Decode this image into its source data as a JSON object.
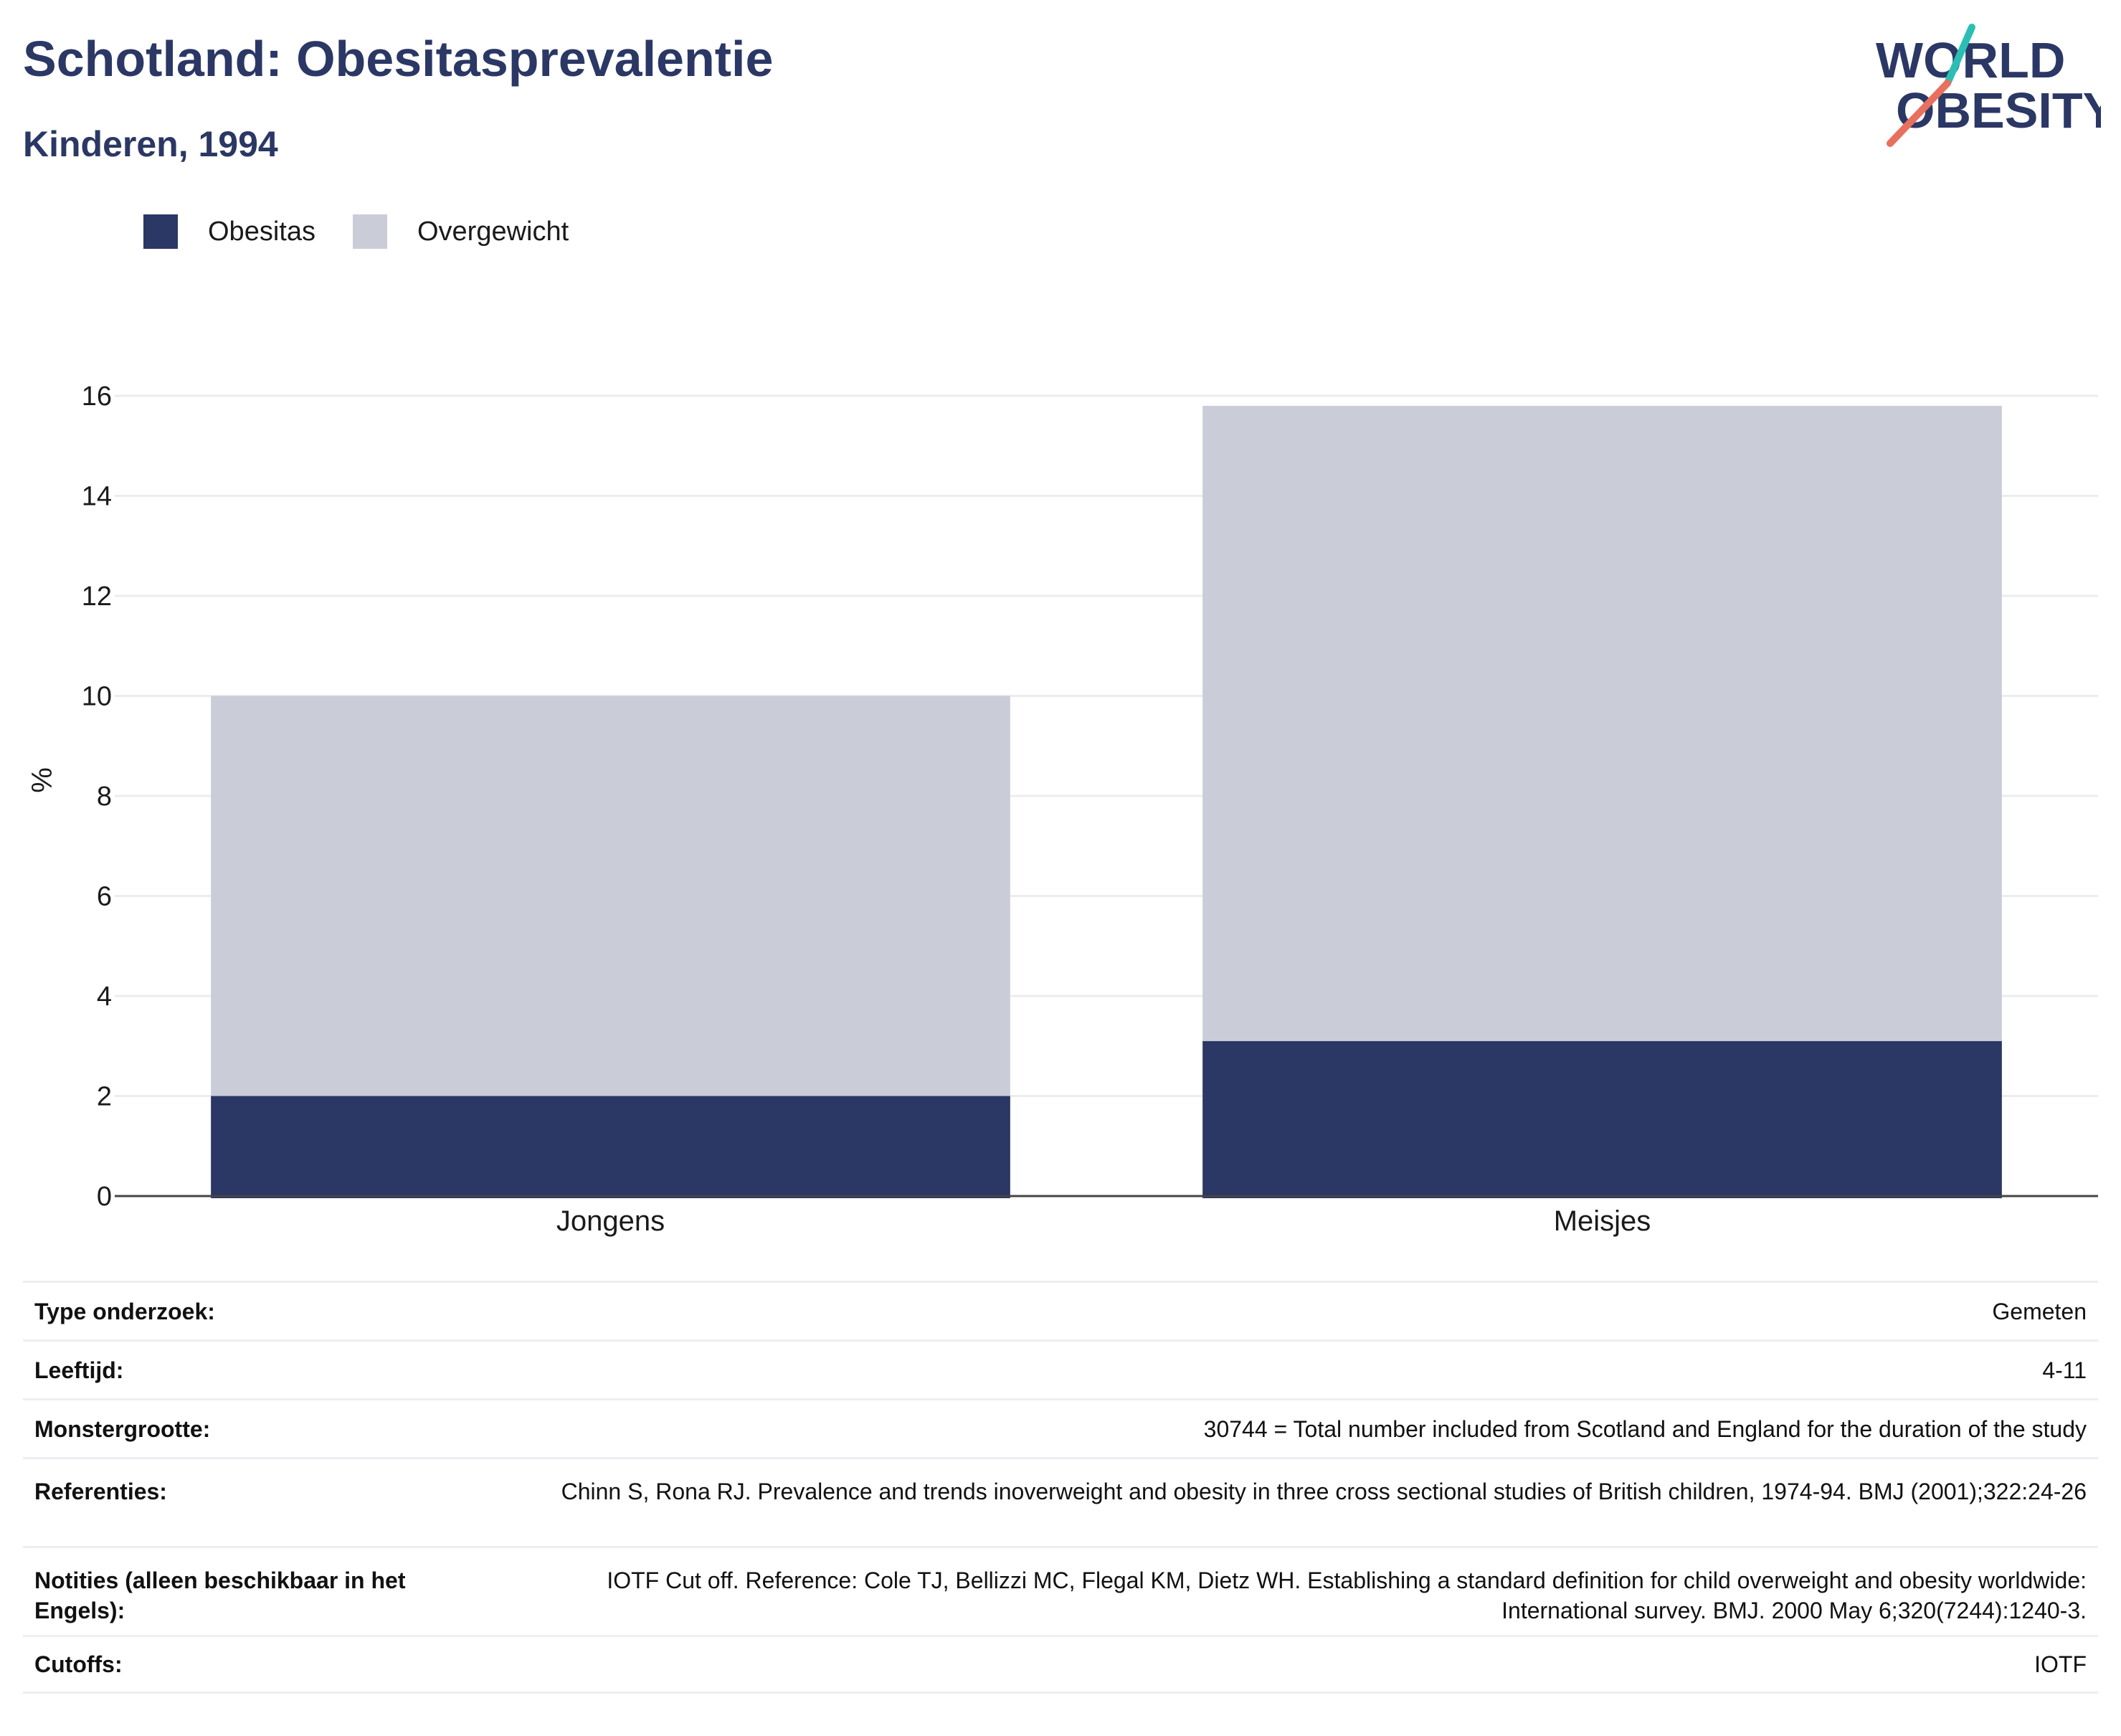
{
  "header": {
    "title": "Schotland: Obesitasprevalentie",
    "subtitle": "Kinderen, 1994",
    "logo_line1": "WORLD",
    "logo_line2": "OBESITY"
  },
  "colors": {
    "obesitas": "#2b3764",
    "overgewicht": "#cacdd8",
    "title": "#2b3764",
    "logo_teal": "#2bbfb4",
    "logo_coral": "#e8705e"
  },
  "legend": [
    {
      "label": "Obesitas",
      "color": "#2b3764"
    },
    {
      "label": "Overgewicht",
      "color": "#cacdd8"
    }
  ],
  "chart_data": {
    "type": "bar",
    "stacked": true,
    "categories": [
      "Jongens",
      "Meisjes"
    ],
    "series": [
      {
        "name": "Obesitas",
        "values": [
          2.0,
          3.1
        ]
      },
      {
        "name": "Overgewicht",
        "values": [
          8.0,
          12.7
        ]
      }
    ],
    "ylabel": "%",
    "ylim": [
      0,
      16
    ],
    "yticks": [
      0,
      2,
      4,
      6,
      8,
      10,
      12,
      14,
      16
    ],
    "grid": true,
    "legend_position": "top-left"
  },
  "table": [
    {
      "key": "Type onderzoek:",
      "value": "Gemeten"
    },
    {
      "key": "Leeftijd:",
      "value": "4-11"
    },
    {
      "key": "Monstergrootte:",
      "value": "30744 = Total number included from Scotland and England for the duration of the study"
    },
    {
      "key": "Referenties:",
      "value": "Chinn S, Rona RJ. Prevalence and trends inoverweight and obesity in three cross sectional studies of British children, 1974-94. BMJ (2001);322:24-26"
    },
    {
      "key": "Notities (alleen beschikbaar in het Engels):",
      "value": "IOTF Cut off. Reference: Cole TJ, Bellizzi MC, Flegal KM, Dietz WH. Establishing a standard definition for child overweight and obesity worldwide: International survey. BMJ. 2000 May 6;320(7244):1240-3."
    },
    {
      "key": "Cutoffs:",
      "value": "IOTF"
    }
  ]
}
